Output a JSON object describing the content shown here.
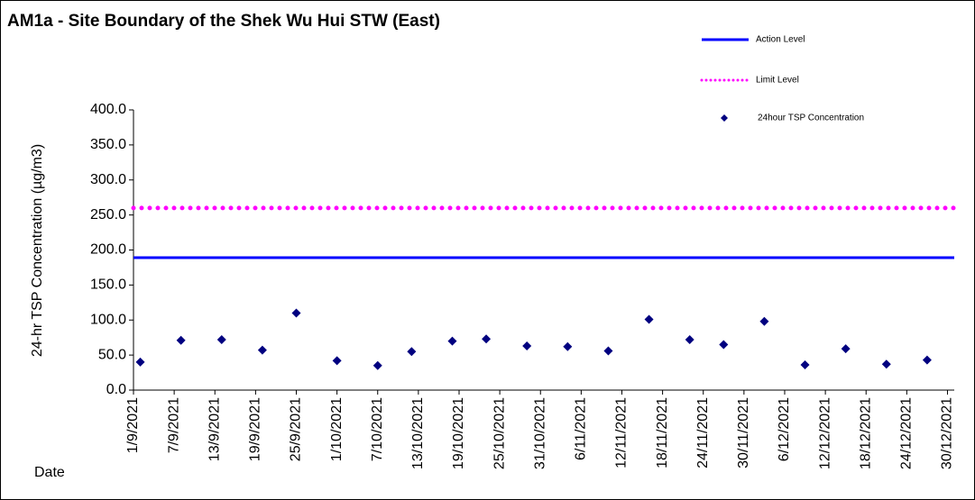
{
  "chart_data": {
    "type": "scatter",
    "title": "AM1a - Site Boundary of the Shek Wu Hui STW (East)",
    "y_label": "24-hr TSP Concentration (µg/m3)",
    "x_label": "Date",
    "xlim": [
      "1/9/2021",
      "31/12/2021"
    ],
    "xticks": [
      "1/9/2021",
      "7/9/2021",
      "13/9/2021",
      "19/9/2021",
      "25/9/2021",
      "1/10/2021",
      "7/10/2021",
      "13/10/2021",
      "19/10/2021",
      "25/10/2021",
      "31/10/2021",
      "6/11/2021",
      "12/11/2021",
      "18/11/2021",
      "24/11/2021",
      "30/11/2021",
      "6/12/2021",
      "12/12/2021",
      "18/12/2021",
      "24/12/2021",
      "30/12/2021"
    ],
    "ylim": [
      0,
      400
    ],
    "yticks": [
      {
        "value": 0,
        "label": "0.0"
      },
      {
        "value": 50,
        "label": "50.0"
      },
      {
        "value": 100,
        "label": "100.0"
      },
      {
        "value": 150,
        "label": "150.0"
      },
      {
        "value": 200,
        "label": "200.0"
      },
      {
        "value": 250,
        "label": "250.0"
      },
      {
        "value": 300,
        "label": "300.0"
      },
      {
        "value": 350,
        "label": "350.0"
      },
      {
        "value": 400,
        "label": "400.0"
      }
    ],
    "series": [
      {
        "name": "Action Level",
        "color": "#0000ff",
        "style": "line",
        "x": [
          "1/9/2021",
          "31/12/2021"
        ],
        "values": [
          189,
          189
        ]
      },
      {
        "name": "Limit Level",
        "color": "#ff00ff",
        "style": "dotted",
        "x": [
          "1/9/2021",
          "31/12/2021"
        ],
        "values": [
          260,
          260
        ]
      },
      {
        "name": "24hour TSP Concentration",
        "color": "#000080",
        "style": "marker",
        "x": [
          "2/9/2021",
          "8/9/2021",
          "14/9/2021",
          "20/9/2021",
          "25/9/2021",
          "1/10/2021",
          "7/10/2021",
          "12/10/2021",
          "18/10/2021",
          "23/10/2021",
          "29/10/2021",
          "4/11/2021",
          "10/11/2021",
          "16/11/2021",
          "22/11/2021",
          "27/11/2021",
          "3/12/2021",
          "9/12/2021",
          "15/12/2021",
          "21/12/2021",
          "27/12/2021"
        ],
        "values": [
          40,
          71,
          72,
          57,
          110,
          42,
          35,
          55,
          70,
          73,
          63,
          62,
          56,
          101,
          72,
          65,
          98,
          36,
          59,
          37,
          43
        ]
      }
    ]
  }
}
